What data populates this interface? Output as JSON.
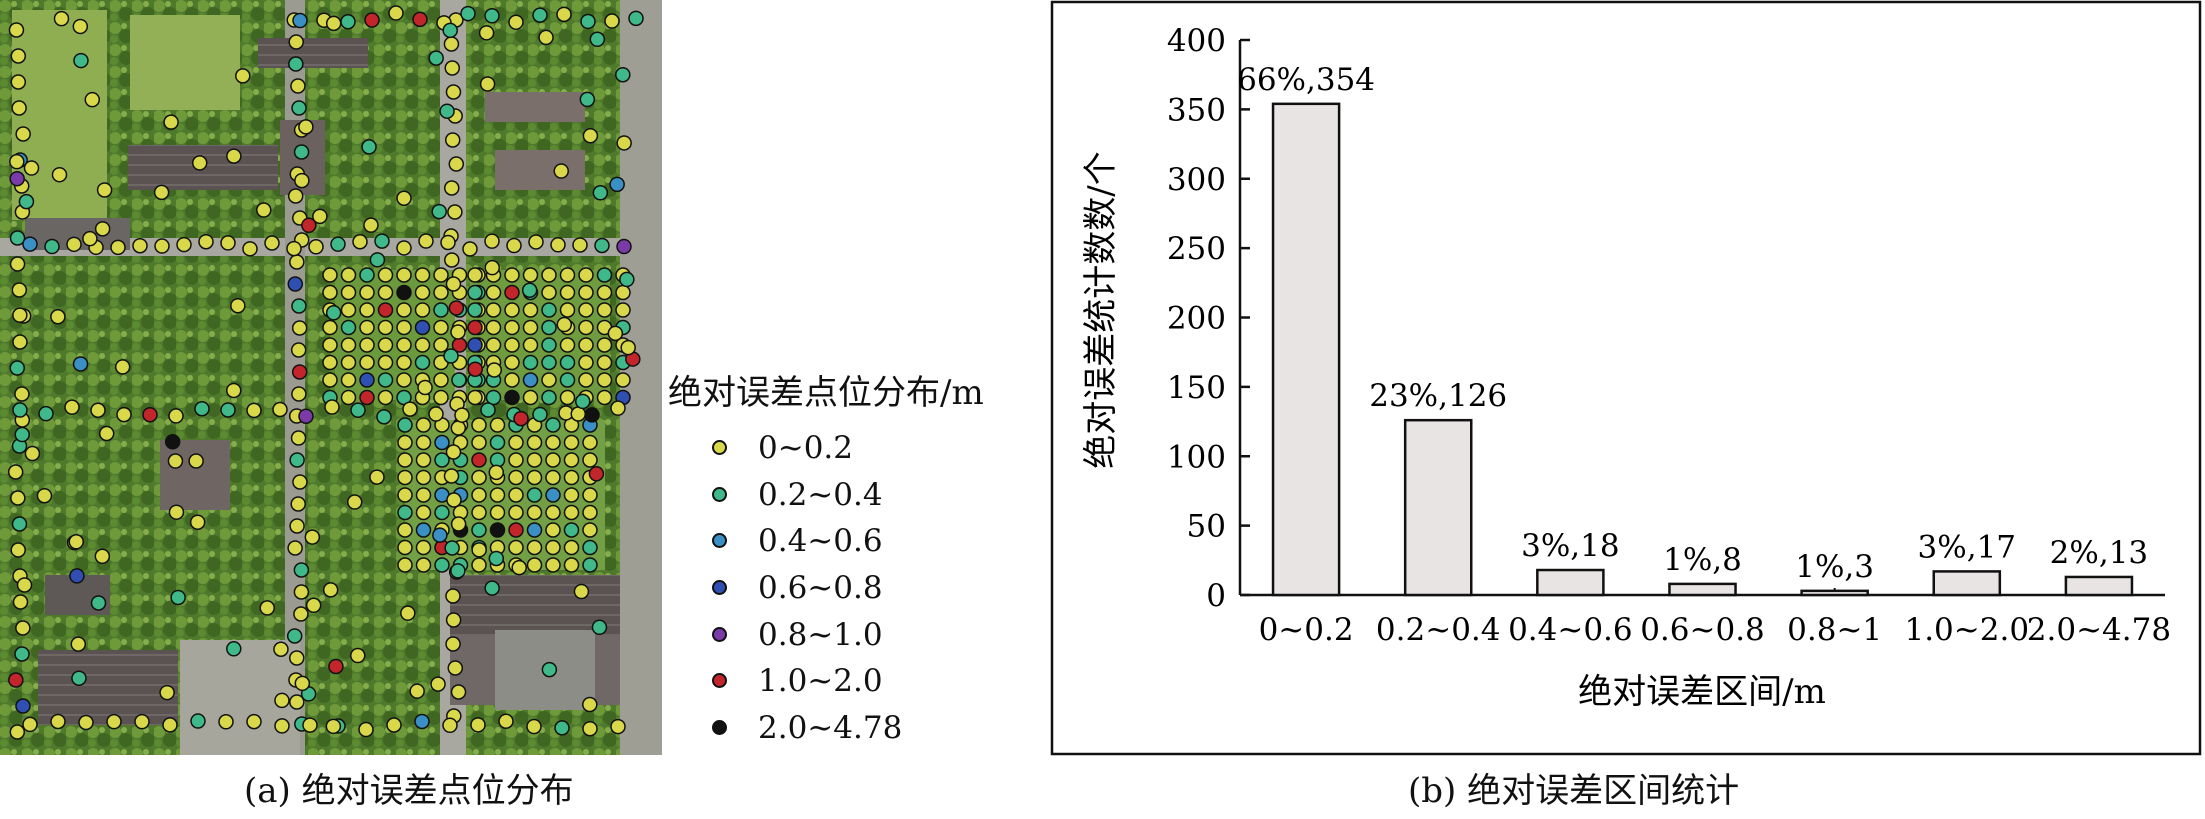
{
  "panel_a": {
    "caption": "(a) 绝对误差点位分布",
    "legend": {
      "title": "绝对误差点位分布/m",
      "items": [
        {
          "label": "0~0.2",
          "color": "#d9d84a"
        },
        {
          "label": "0.2~0.4",
          "color": "#3fb98a"
        },
        {
          "label": "0.4~0.6",
          "color": "#3a8fc4"
        },
        {
          "label": "0.6~0.8",
          "color": "#2f4fb3"
        },
        {
          "label": "0.8~1.0",
          "color": "#7a3aa8"
        },
        {
          "label": "1.0~2.0",
          "color": "#c2262b"
        },
        {
          "label": "2.0~4.78",
          "color": "#111111"
        }
      ]
    }
  },
  "panel_b": {
    "caption": "(b) 绝对误差区间统计"
  },
  "chart_data": {
    "type": "bar",
    "categories": [
      "0~0.2",
      "0.2~0.4",
      "0.4~0.6",
      "0.6~0.8",
      "0.8~1",
      "1.0~2.0",
      "2.0~4.78"
    ],
    "values": [
      354,
      126,
      18,
      8,
      3,
      17,
      13
    ],
    "data_labels": [
      "66%,354",
      "23%,126",
      "3%,18",
      "1%,8",
      "1%,3",
      "3%,17",
      "2%,13"
    ],
    "title": "",
    "xlabel": "绝对误差区间/m",
    "ylabel": "绝对误差统计数数/个",
    "ylim": [
      0,
      400
    ],
    "yticks": [
      0,
      50,
      100,
      150,
      200,
      250,
      300,
      350,
      400
    ],
    "bar_color": "#e8e4e4",
    "grid": false,
    "legend": false
  }
}
